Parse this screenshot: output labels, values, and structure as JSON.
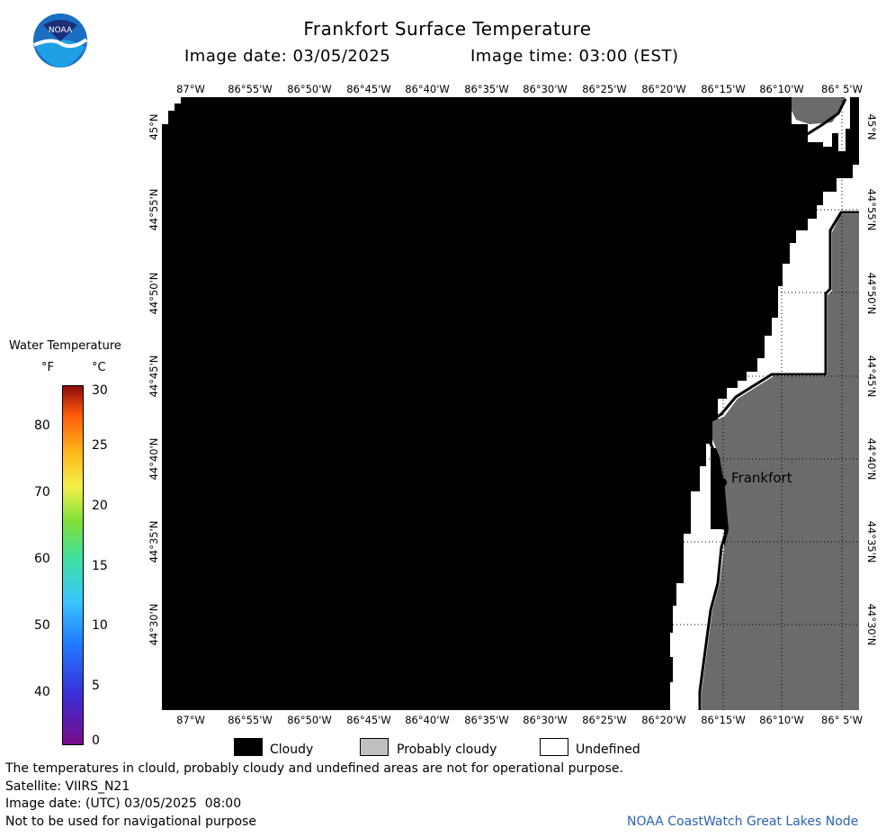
{
  "header": {
    "title": "Frankfort Surface Temperature",
    "image_date": "Image date: 03/05/2025",
    "image_time": "Image time: 03:00 (EST)"
  },
  "logo": {
    "text": "NOAA"
  },
  "map": {
    "lon_ticks": [
      "87°W",
      "86°55'W",
      "86°50'W",
      "86°45'W",
      "86°40'W",
      "86°35'W",
      "86°30'W",
      "86°25'W",
      "86°20'W",
      "86°15'W",
      "86°10'W",
      "86° 5'W"
    ],
    "lat_ticks": [
      "45°N",
      "44°55'N",
      "44°50'N",
      "44°45'N",
      "44°40'N",
      "44°35'N",
      "44°30'N"
    ],
    "city": "Frankfort",
    "colors": {
      "cloudy": "#000000",
      "land": "#6b6b6b",
      "undefined": "#ffffff",
      "shoreline": "#000000"
    }
  },
  "scale": {
    "title": "Water Temperature",
    "unit_f": "°F",
    "unit_c": "°C",
    "f_ticks": [
      "80",
      "70",
      "60",
      "50",
      "40"
    ],
    "c_ticks": [
      "30",
      "25",
      "20",
      "15",
      "10",
      "5",
      "0"
    ]
  },
  "legend": {
    "cloudy": "Cloudy",
    "probably_cloudy": "Probably cloudy",
    "undefined": "Undefined",
    "colors": {
      "cloudy": "#000000",
      "probably_cloudy": "#c0c0c0",
      "undefined": "#ffffff"
    }
  },
  "footer": {
    "disclaimer": "The temperatures in clould, probably cloudy and undefined areas are not for operational purpose.",
    "satellite": "Satellite: VIIRS_N21",
    "utc_date": "Image date: (UTC) 03/05/2025  08:00",
    "nav": "Not to be used for navigational purpose",
    "credit": "NOAA CoastWatch Great Lakes Node"
  }
}
